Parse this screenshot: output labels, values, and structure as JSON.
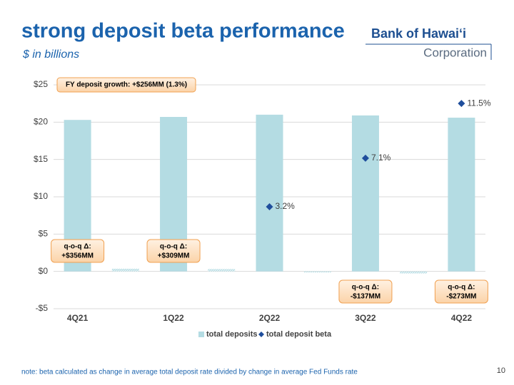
{
  "chart_data": {
    "type": "bar",
    "title": "strong deposit beta performance",
    "subtitle": "$ in billions",
    "logo": {
      "name": "Bank of Hawaiʻi",
      "sub": "Corporation"
    },
    "annotation": "FY deposit growth: +$256MM (1.3%)",
    "note": "note: beta calculated as change in average total deposit rate divided by change in average Fed Funds rate",
    "page_number": "10",
    "categories": [
      "4Q21",
      null,
      "1Q22",
      null,
      "2Q22",
      null,
      "3Q22",
      null,
      "4Q22"
    ],
    "series": [
      {
        "name": "total deposits",
        "color": "#b4dce3",
        "values": [
          20.3,
          null,
          20.7,
          null,
          21.0,
          null,
          20.9,
          null,
          20.6
        ]
      },
      {
        "name": "total deposit beta",
        "color": "#1f4e9c",
        "axis": "y2",
        "marker": "diamond",
        "values": [
          null,
          null,
          null,
          null,
          3.2,
          null,
          7.1,
          null,
          11.5
        ],
        "value_labels": [
          null,
          null,
          null,
          null,
          "3.2%",
          null,
          "7.1%",
          null,
          "11.5%"
        ]
      }
    ],
    "changes": {
      "label": "q-o-q Δ:",
      "color": "#b4dce3",
      "values": [
        0.356,
        0.309,
        -0.137,
        -0.273
      ],
      "value_labels": [
        "+$356MM",
        "+$309MM",
        "-$137MM",
        "-$273MM"
      ]
    },
    "ylim": [
      -5,
      25
    ],
    "yticks": [
      {
        "value": -5,
        "label": "-$5"
      },
      {
        "value": 0,
        "label": "$0"
      },
      {
        "value": 5,
        "label": "$5"
      },
      {
        "value": 10,
        "label": "$10"
      },
      {
        "value": 15,
        "label": "$15"
      },
      {
        "value": 20,
        "label": "$20"
      },
      {
        "value": 25,
        "label": "$25"
      }
    ],
    "y2lim": [
      -5,
      13
    ],
    "grid": true,
    "legend": "bottom"
  }
}
